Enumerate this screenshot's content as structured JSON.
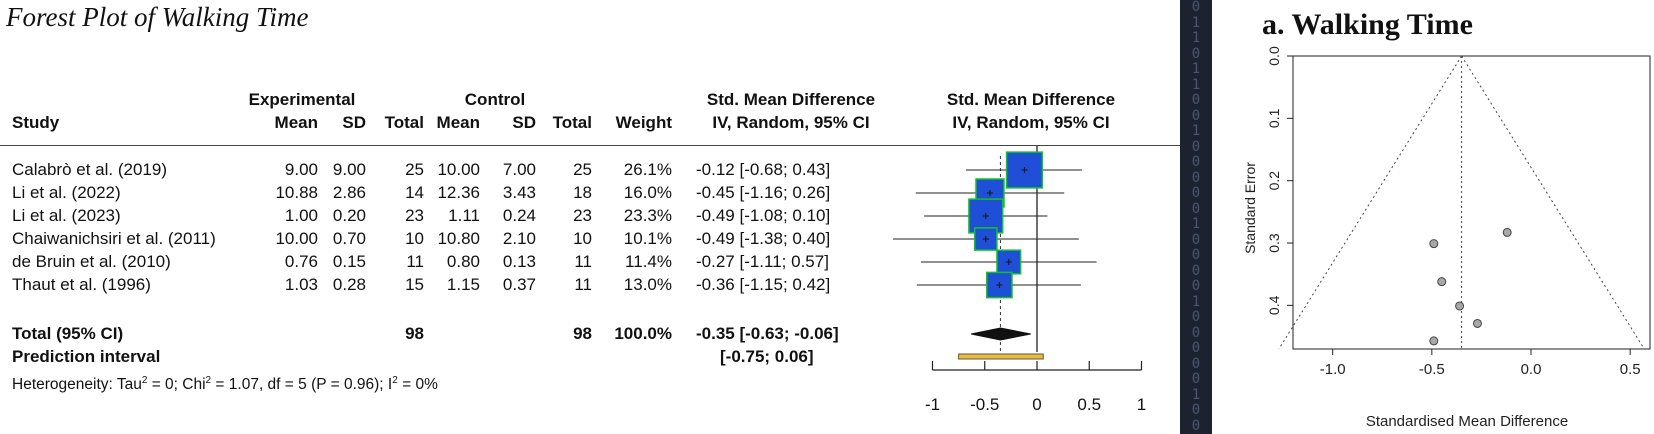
{
  "forest": {
    "title": "Forest Plot of Walking Time",
    "headers": {
      "study": "Study",
      "experimental": "Experimental",
      "control": "Control",
      "mean": "Mean",
      "sd": "SD",
      "total": "Total",
      "weight": "Weight",
      "smd_title": "Std. Mean Difference",
      "smd_sub": "IV, Random, 95% CI",
      "plot_title": "Std. Mean Difference",
      "plot_sub": "IV, Random, 95% CI"
    },
    "studies": [
      {
        "name": "Calabrò et al. (2019)",
        "e_mean": "9.00",
        "e_sd": "9.00",
        "e_total": "25",
        "c_mean": "10.00",
        "c_sd": "7.00",
        "c_total": "25",
        "weight": "26.1%",
        "ci_text": "-0.12 [-0.68;  0.43]"
      },
      {
        "name": "Li et al. (2022)",
        "e_mean": "10.88",
        "e_sd": "2.86",
        "e_total": "14",
        "c_mean": "12.36",
        "c_sd": "3.43",
        "c_total": "18",
        "weight": "16.0%",
        "ci_text": "-0.45 [-1.16;  0.26]"
      },
      {
        "name": "Li et al. (2023)",
        "e_mean": "1.00",
        "e_sd": "0.20",
        "e_total": "23",
        "c_mean": "1.11",
        "c_sd": "0.24",
        "c_total": "23",
        "weight": "23.3%",
        "ci_text": "-0.49 [-1.08;  0.10]"
      },
      {
        "name": "Chaiwanichsiri et al. (2011)",
        "e_mean": "10.00",
        "e_sd": "0.70",
        "e_total": "10",
        "c_mean": "10.80",
        "c_sd": "2.10",
        "c_total": "10",
        "weight": "10.1%",
        "ci_text": "-0.49 [-1.38;  0.40]"
      },
      {
        "name": "de Bruin et al. (2010)",
        "e_mean": "0.76",
        "e_sd": "0.15",
        "e_total": "11",
        "c_mean": "0.80",
        "c_sd": "0.13",
        "c_total": "11",
        "weight": "11.4%",
        "ci_text": "-0.27 [-1.11;  0.57]"
      },
      {
        "name": "Thaut et al. (1996)",
        "e_mean": "1.03",
        "e_sd": "0.28",
        "e_total": "15",
        "c_mean": "1.15",
        "c_sd": "0.37",
        "c_total": "11",
        "weight": "13.0%",
        "ci_text": "-0.36 [-1.15;  0.42]"
      }
    ],
    "total": {
      "label": "Total (95% CI)",
      "e_total": "98",
      "c_total": "98",
      "weight": "100.0%",
      "ci_text": "-0.35 [-0.63; -0.06]"
    },
    "prediction": {
      "label": "Prediction interval",
      "ci_text": "[-0.75;  0.06]"
    },
    "heterogeneity": {
      "pre": "Heterogeneity: Tau",
      "sup1": "2",
      "mid": " = 0; Chi",
      "sup2": "2",
      "mid2": " = 1.07, df = 5 (P = 0.96); I",
      "sup3": "2",
      "post": " = 0%"
    },
    "colors": {
      "square": "#1f4fd6",
      "square_border": "#13c22a",
      "diamond": "#111111",
      "prediction_fill": "#e8b84a",
      "prediction_border": "#6b5a2a"
    }
  },
  "funnel": {
    "title": "a.   Walking Time",
    "colors": {
      "point": "#a8a8a8"
    }
  },
  "chart_data": [
    {
      "type": "forest",
      "title": "Forest Plot of Walking Time",
      "xlabel": "",
      "xlim": [
        -1,
        1
      ],
      "xticks": [
        -1,
        -0.5,
        0,
        0.5,
        1
      ],
      "xtick_labels": [
        "-1",
        "-0.5",
        "0",
        "0.5",
        "1"
      ],
      "studies": [
        {
          "name": "Calabrò et al. (2019)",
          "smd": -0.12,
          "lower": -0.68,
          "upper": 0.43,
          "weight": 26.1
        },
        {
          "name": "Li et al. (2022)",
          "smd": -0.45,
          "lower": -1.16,
          "upper": 0.26,
          "weight": 16.0
        },
        {
          "name": "Li et al. (2023)",
          "smd": -0.49,
          "lower": -1.08,
          "upper": 0.1,
          "weight": 23.3
        },
        {
          "name": "Chaiwanichsiri et al. (2011)",
          "smd": -0.49,
          "lower": -1.38,
          "upper": 0.4,
          "weight": 10.1
        },
        {
          "name": "de Bruin et al. (2010)",
          "smd": -0.27,
          "lower": -1.11,
          "upper": 0.57,
          "weight": 11.4
        },
        {
          "name": "Thaut et al. (1996)",
          "smd": -0.36,
          "lower": -1.15,
          "upper": 0.42,
          "weight": 13.0
        }
      ],
      "pooled": {
        "smd": -0.35,
        "lower": -0.63,
        "upper": -0.06
      },
      "prediction_interval": {
        "lower": -0.75,
        "upper": 0.06
      }
    },
    {
      "type": "scatter",
      "title": "a.   Walking Time",
      "xlabel": "Standardised Mean Difference",
      "ylabel": "Standard Error",
      "xlim": [
        -1.2,
        0.6
      ],
      "ylim": [
        0.47,
        0.0
      ],
      "y_reversed": true,
      "xticks": [
        -1.0,
        -0.5,
        0.0,
        0.5
      ],
      "xtick_labels": [
        "-1.0",
        "-0.5",
        "0.0",
        "0.5"
      ],
      "yticks": [
        0.0,
        0.1,
        0.2,
        0.3,
        0.4
      ],
      "ytick_labels": [
        "0.0",
        "0.1",
        "0.2",
        "0.3",
        "0.4"
      ],
      "pooled_smd": -0.35,
      "points": [
        {
          "x": -0.12,
          "y": 0.283
        },
        {
          "x": -0.49,
          "y": 0.301
        },
        {
          "x": -0.45,
          "y": 0.362
        },
        {
          "x": -0.36,
          "y": 0.401
        },
        {
          "x": -0.27,
          "y": 0.429
        },
        {
          "x": -0.49,
          "y": 0.457
        }
      ]
    }
  ]
}
